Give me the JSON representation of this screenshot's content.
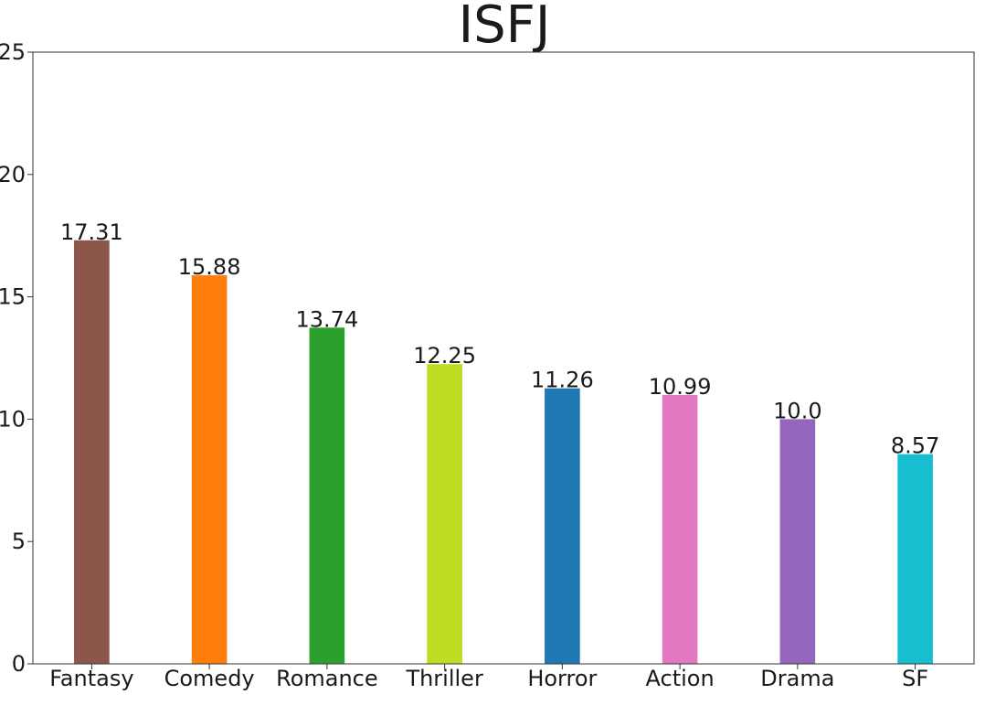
{
  "chart_data": {
    "type": "bar",
    "title": "ISFJ",
    "xlabel": "",
    "ylabel": "",
    "categories": [
      "Fantasy",
      "Comedy",
      "Romance",
      "Thriller",
      "Horror",
      "Action",
      "Drama",
      "SF"
    ],
    "values": [
      17.31,
      15.88,
      13.74,
      12.25,
      11.26,
      10.99,
      10.0,
      8.57
    ],
    "value_labels": [
      "17.31",
      "15.88",
      "13.74",
      "12.25",
      "11.26",
      "10.99",
      "10.0",
      "8.57"
    ],
    "colors": [
      "#8c564b",
      "#ff7f0e",
      "#2ca02c",
      "#bcdd22",
      "#1f77b4",
      "#e377c2",
      "#9467bd",
      "#17becf"
    ],
    "ylim": [
      0,
      25
    ],
    "yticks": [
      0,
      5,
      10,
      15,
      20,
      25
    ],
    "grid": false,
    "legend": false
  }
}
